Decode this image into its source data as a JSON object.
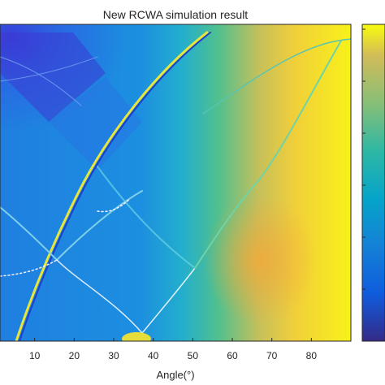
{
  "chart_data": {
    "type": "heatmap",
    "title": "New RCWA simulation result",
    "xlabel": "Angle(°)",
    "ylabel": "",
    "xlim": [
      0,
      90
    ],
    "x_ticks": [
      10,
      20,
      30,
      40,
      50,
      60,
      70,
      80
    ],
    "colormap": "parula",
    "colorbar": true,
    "grid": false
  }
}
